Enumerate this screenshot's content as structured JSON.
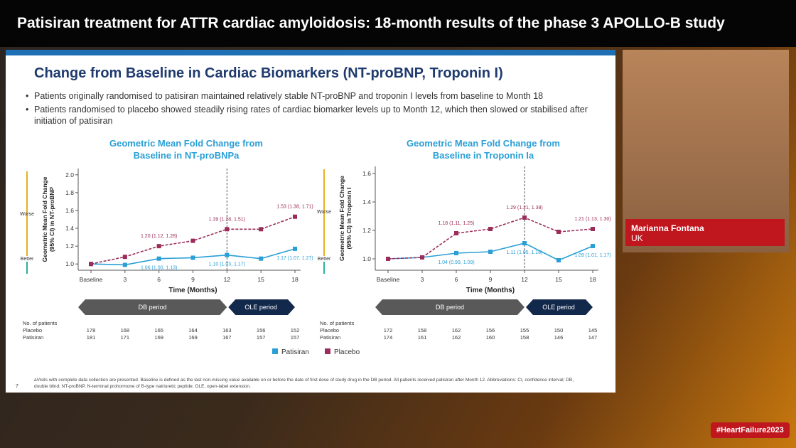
{
  "header": {
    "title": "Patisiran treatment for ATTR cardiac amyloidosis: 18-month results of the phase 3 APOLLO-B study"
  },
  "slide": {
    "title": "Change from Baseline in Cardiac Biomarkers (NT-proBNP, Troponin I)",
    "bullets": [
      "Patients originally randomised to patisiran maintained relatively stable NT-proBNP and troponin I levels from baseline to Month 18",
      "Patients randomised to placebo showed steadily rising rates of cardiac biomarker levels up to Month 12, which then slowed or stabilised after initiation of patisiran"
    ],
    "footnote": "aVisits with complete data collection are presented. Baseline is defined as the last non-missing value available on or before the date of first dose of study drug in the DB period. All patients received patisiran after Month 12. Abbreviations: CI, confidence interval; DB, double blind; NT-proBNP, N-terminal prohormone of B-type natriuretic peptide; OLE, open-label extension.",
    "page": "7"
  },
  "speaker": {
    "name": "Marianna Fontana",
    "country": "UK"
  },
  "hashtag": "#HeartFailure2023",
  "chart_data": [
    {
      "type": "line",
      "title": [
        "Geometric Mean Fold Change from",
        "Baseline in NT-proBNPa"
      ],
      "x_label": "Time (Months)",
      "y_label": [
        "Geometric Mean Fold Change",
        "(95% CI) in NT-proBNP"
      ],
      "worse": "Worse",
      "better": "Better",
      "categories": [
        "Baseline",
        "3",
        "6",
        "9",
        "12",
        "15",
        "18"
      ],
      "ylim": [
        0.93,
        2.07
      ],
      "yticks": [
        {
          "value": 1,
          "label": "1.0"
        },
        1.2,
        1.4,
        1.6,
        1.8,
        {
          "value": 2,
          "label": "2.0"
        }
      ],
      "series": [
        {
          "name": "Patisiran",
          "color": "#2a9fd6",
          "line_style": "solid",
          "values": [
            1,
            0.99,
            1.06,
            1.07,
            1.1,
            1.06,
            1.17
          ],
          "value_labels": [
            null,
            null,
            "1.06 (1.00, 1.13)",
            null,
            "1.10 (1.03, 1.17)",
            null,
            "1.17 (1.07, 1.27)"
          ]
        },
        {
          "name": "Placebo",
          "color": "#9b2d5a",
          "line_style": "dashed",
          "values": [
            1,
            1.08,
            1.2,
            1.26,
            1.39,
            1.39,
            1.53
          ],
          "value_labels": [
            null,
            null,
            "1.20 (1.12, 1.28)",
            null,
            "1.39 (1.28, 1.51)",
            null,
            "1.53 (1.38, 1.71)"
          ]
        }
      ],
      "periods": [
        "DB period",
        "OLE period"
      ],
      "patients": {
        "title": "No. of patients",
        "rows": [
          {
            "name": "Placebo",
            "values": [
              178,
              168,
              165,
              164,
              163,
              156,
              152
            ]
          },
          {
            "name": "Patisiran",
            "values": [
              181,
              171,
              169,
              169,
              167,
              157,
              157
            ]
          }
        ]
      }
    },
    {
      "type": "line",
      "title": [
        "Geometric Mean Fold Change from",
        "Baseline in Troponin Ia"
      ],
      "x_label": "Time (Months)",
      "y_label": [
        "Geometric Mean Fold Change",
        "(95% CI) in Troponin I"
      ],
      "worse": "Worse",
      "better": "Better",
      "categories": [
        "Baseline",
        "3",
        "6",
        "9",
        "12",
        "15",
        "18"
      ],
      "ylim": [
        0.92,
        1.65
      ],
      "yticks": [
        {
          "value": 1,
          "label": "1.0"
        },
        1.2,
        1.4,
        1.6
      ],
      "series": [
        {
          "name": "Patisiran",
          "color": "#2a9fd6",
          "line_style": "solid",
          "values": [
            1,
            1.01,
            1.04,
            1.05,
            1.11,
            0.99,
            1.09
          ],
          "value_labels": [
            null,
            null,
            "1.04 (0.99, 1.09)",
            null,
            "1.11 (1.05, 1.18)",
            null,
            "1.09 (1.01, 1.17)"
          ]
        },
        {
          "name": "Placebo",
          "color": "#9b2d5a",
          "line_style": "dashed",
          "values": [
            1,
            1.01,
            1.18,
            1.21,
            1.29,
            1.19,
            1.21
          ],
          "value_labels": [
            null,
            null,
            "1.18 (1.11, 1.25)",
            null,
            "1.29 (1.21, 1.38)",
            null,
            "1.21 (1.13, 1.30)"
          ]
        }
      ],
      "periods": [
        "DB period",
        "OLE period"
      ],
      "patients": {
        "title": "No. of patients",
        "rows": [
          {
            "name": "Placebo",
            "values": [
              172,
              158,
              162,
              156,
              155,
              150,
              145
            ]
          },
          {
            "name": "Patisiran",
            "values": [
              174,
              161,
              162,
              160,
              158,
              146,
              147
            ]
          }
        ]
      }
    }
  ]
}
